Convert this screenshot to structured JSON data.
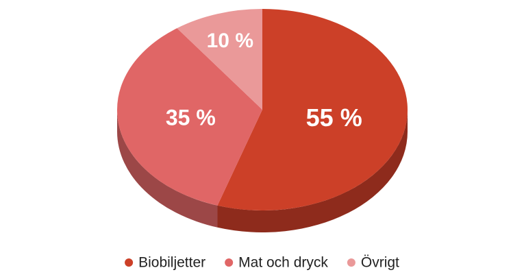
{
  "chart_data": {
    "type": "pie",
    "title": "",
    "categories": [
      "Biobiljetter",
      "Mat och dryck",
      "Övrigt"
    ],
    "values": [
      55,
      35,
      10
    ],
    "value_labels": [
      "55 %",
      "35 %",
      "10 %"
    ],
    "colors": [
      "#cc4028",
      "#e06666",
      "#ea9999"
    ],
    "side_colors": [
      "#8e2b1c",
      "#9c4747",
      "#a36b6b"
    ],
    "style": "3d",
    "legend_position": "bottom"
  }
}
